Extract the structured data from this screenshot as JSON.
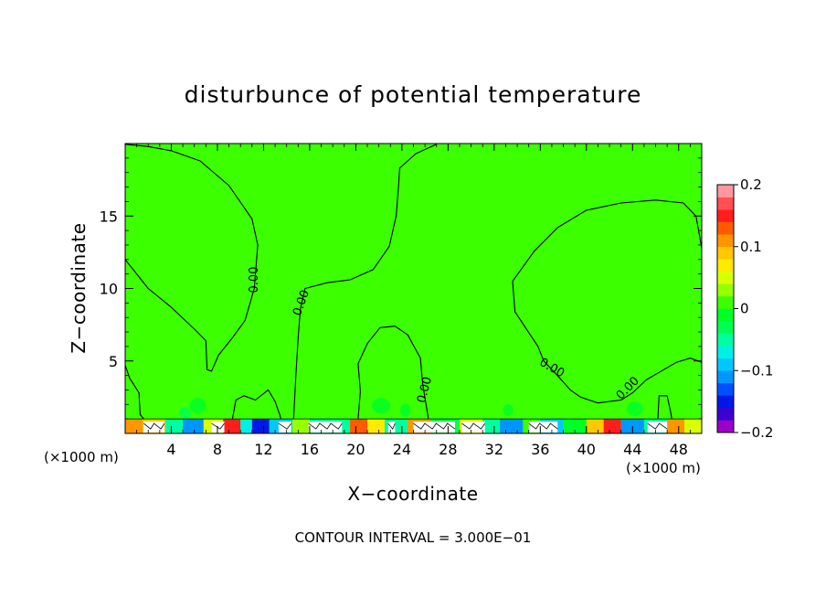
{
  "chart_data": {
    "type": "heatmap",
    "title": "disturbunce of potential temperature",
    "xlabel": "X−coordinate",
    "ylabel": "Z−coordinate",
    "x_unit_left": "(×1000 m)",
    "x_unit_right": "(×1000 m)",
    "footer": "CONTOUR INTERVAL = 3.000E−01",
    "xlim": [
      0,
      50
    ],
    "ylim": [
      0,
      20
    ],
    "x_ticks": [
      4,
      8,
      12,
      16,
      20,
      24,
      28,
      32,
      36,
      40,
      44,
      48
    ],
    "x_tick_labels": [
      "4",
      "8",
      "12",
      "16",
      "20",
      "24",
      "28",
      "32",
      "36",
      "40",
      "44",
      "48"
    ],
    "y_ticks": [
      5,
      10,
      15
    ],
    "y_tick_labels": [
      "5",
      "10",
      "15"
    ],
    "background_value": 0,
    "contour_labels": [
      {
        "text": "0.00",
        "x": 11.2,
        "y": 10.6,
        "angle": -90
      },
      {
        "text": "0.00",
        "x": 15.3,
        "y": 9.0,
        "angle": -70
      },
      {
        "text": "0.00",
        "x": 26.0,
        "y": 3.0,
        "angle": -75
      },
      {
        "text": "0.00",
        "x": 37.0,
        "y": 4.5,
        "angle": 30
      },
      {
        "text": "0.00",
        "x": 43.6,
        "y": 3.1,
        "angle": -45
      }
    ],
    "contours": [
      {
        "level": 0.0,
        "points": [
          [
            0,
            12
          ],
          [
            2,
            10
          ],
          [
            4,
            8.7
          ],
          [
            6,
            7.2
          ],
          [
            7,
            6.4
          ],
          [
            7.1,
            4.4
          ],
          [
            7.5,
            4.3
          ],
          [
            8.1,
            5.4
          ],
          [
            9.3,
            6.6
          ],
          [
            10.4,
            7.8
          ],
          [
            11.2,
            10
          ],
          [
            11.5,
            13
          ],
          [
            11,
            14.8
          ],
          [
            9,
            17.1
          ],
          [
            6.5,
            18.8
          ],
          [
            4,
            19.5
          ],
          [
            2,
            19.8
          ],
          [
            0,
            19.95
          ]
        ]
      },
      {
        "level": 0.0,
        "points": [
          [
            14.6,
            1.0
          ],
          [
            14.8,
            4
          ],
          [
            15.0,
            6.6
          ],
          [
            15.2,
            8.6
          ],
          [
            15.6,
            10
          ],
          [
            17.5,
            10.4
          ],
          [
            19.5,
            10.6
          ],
          [
            21.5,
            11.3
          ],
          [
            22.9,
            12.9
          ],
          [
            23.5,
            15
          ],
          [
            23.7,
            17
          ],
          [
            23.8,
            18.3
          ],
          [
            25.2,
            19.3
          ],
          [
            27,
            19.95
          ]
        ]
      },
      {
        "level": 0.0,
        "points": [
          [
            20.2,
            1.0
          ],
          [
            20.4,
            2.9
          ],
          [
            20.2,
            4.8
          ],
          [
            21,
            6.2
          ],
          [
            22.1,
            7.3
          ],
          [
            23.4,
            7.4
          ],
          [
            24.5,
            6.8
          ],
          [
            25.6,
            5.2
          ],
          [
            25.8,
            3.4
          ],
          [
            26.2,
            1.5
          ],
          [
            26.3,
            1.0
          ]
        ]
      },
      {
        "level": 0.0,
        "points": [
          [
            50,
            12.8
          ],
          [
            49.5,
            15
          ],
          [
            48.4,
            15.9
          ],
          [
            46,
            16.1
          ],
          [
            43,
            15.9
          ],
          [
            40,
            15.4
          ],
          [
            37.5,
            14.2
          ],
          [
            35.5,
            12.6
          ],
          [
            33.6,
            10.5
          ],
          [
            33.8,
            8.4
          ],
          [
            34.8,
            7.2
          ],
          [
            35.8,
            6
          ],
          [
            36.3,
            5
          ],
          [
            37.6,
            3.9
          ],
          [
            38.6,
            3
          ],
          [
            39.5,
            2.5
          ],
          [
            41,
            2.1
          ],
          [
            42,
            2.2
          ],
          [
            43,
            2.3
          ],
          [
            44,
            2.8
          ],
          [
            45.2,
            3.7
          ],
          [
            46.5,
            4.3
          ],
          [
            47.8,
            4.9
          ],
          [
            49,
            5.2
          ],
          [
            50,
            4.9
          ]
        ]
      },
      {
        "level": 0.0,
        "points": [
          [
            0,
            4.7
          ],
          [
            0.4,
            3.8
          ],
          [
            1.2,
            2.8
          ],
          [
            1.3,
            1.3
          ],
          [
            1.6,
            1.0
          ]
        ]
      },
      {
        "level": 0.0,
        "points": [
          [
            9.3,
            1.0
          ],
          [
            9.6,
            2.3
          ],
          [
            10.3,
            2.6
          ],
          [
            11.3,
            2.3
          ],
          [
            12.4,
            3
          ],
          [
            13.0,
            2.2
          ],
          [
            13.4,
            1.3
          ],
          [
            13.5,
            1.0
          ]
        ]
      },
      {
        "level": 0.0,
        "points": [
          [
            46.2,
            1.0
          ],
          [
            46.3,
            2.6
          ],
          [
            47,
            2.6
          ],
          [
            47.3,
            1.5
          ],
          [
            47.4,
            1.0
          ]
        ]
      }
    ],
    "blobs": [
      {
        "x": 16.6,
        "y": 5.2,
        "rx": 0.55,
        "ry": 1.3,
        "value": 0.02
      },
      {
        "x": 27.5,
        "y": 1.9,
        "rx": 0.25,
        "ry": 0.45,
        "value": 0.02
      },
      {
        "x": 6.3,
        "y": 1.9,
        "rx": 0.7,
        "ry": 0.55,
        "value": -0.02
      },
      {
        "x": 5.2,
        "y": 1.4,
        "rx": 0.5,
        "ry": 0.4,
        "value": -0.03
      },
      {
        "x": 22.2,
        "y": 1.9,
        "rx": 0.8,
        "ry": 0.55,
        "value": -0.02
      },
      {
        "x": 24.3,
        "y": 1.6,
        "rx": 0.45,
        "ry": 0.45,
        "value": -0.02
      },
      {
        "x": 44.2,
        "y": 1.7,
        "rx": 0.7,
        "ry": 0.5,
        "value": -0.02
      },
      {
        "x": 33.2,
        "y": 1.6,
        "rx": 0.45,
        "ry": 0.4,
        "value": -0.02
      }
    ],
    "surface_band": {
      "y_top": 1.0,
      "cells": [
        {
          "x0": 0.0,
          "x1": 1.5,
          "value": 0.12
        },
        {
          "x0": 1.5,
          "x1": 3.5,
          "value": 0.08
        },
        {
          "x0": 3.5,
          "x1": 5.0,
          "value": -0.05
        },
        {
          "x0": 5.0,
          "x1": 6.8,
          "value": -0.12
        },
        {
          "x0": 6.8,
          "x1": 8.5,
          "value": 0.05
        },
        {
          "x0": 8.5,
          "x1": 10.0,
          "value": 0.15
        },
        {
          "x0": 10.0,
          "x1": 11.0,
          "value": -0.08
        },
        {
          "x0": 11.0,
          "x1": 12.5,
          "value": -0.15
        },
        {
          "x0": 12.5,
          "x1": 14.5,
          "value": -0.1
        },
        {
          "x0": 14.5,
          "x1": 16.0,
          "value": 0.03
        },
        {
          "x0": 16.0,
          "x1": 19.5,
          "value": -0.04
        },
        {
          "x0": 19.5,
          "x1": 21.0,
          "value": 0.13
        },
        {
          "x0": 21.0,
          "x1": 22.5,
          "value": 0.06
        },
        {
          "x0": 22.5,
          "x1": 24.5,
          "value": -0.06
        },
        {
          "x0": 24.5,
          "x1": 26.5,
          "value": 0.1
        },
        {
          "x0": 26.5,
          "x1": 29.0,
          "value": -0.03
        },
        {
          "x0": 29.0,
          "x1": 31.0,
          "value": 0.04
        },
        {
          "x0": 31.0,
          "x1": 32.5,
          "value": -0.05
        },
        {
          "x0": 32.5,
          "x1": 34.5,
          "value": -0.12
        },
        {
          "x0": 34.5,
          "x1": 36.0,
          "value": 0.02
        },
        {
          "x0": 36.0,
          "x1": 38.0,
          "value": -0.09
        },
        {
          "x0": 38.0,
          "x1": 40.0,
          "value": -0.02
        },
        {
          "x0": 40.0,
          "x1": 41.5,
          "value": 0.09
        },
        {
          "x0": 41.5,
          "x1": 43.0,
          "value": 0.14
        },
        {
          "x0": 43.0,
          "x1": 45.0,
          "value": -0.11
        },
        {
          "x0": 45.0,
          "x1": 47.0,
          "value": -0.06
        },
        {
          "x0": 47.0,
          "x1": 48.5,
          "value": 0.11
        },
        {
          "x0": 48.5,
          "x1": 50.0,
          "value": 0.05
        }
      ],
      "white_patches": [
        [
          1.6,
          3.4
        ],
        [
          7.5,
          8.6
        ],
        [
          13.3,
          14.4
        ],
        [
          15.9,
          18.8
        ],
        [
          22.8,
          23.4
        ],
        [
          25.0,
          28.6
        ],
        [
          29.2,
          31.2
        ],
        [
          35.0,
          37.5
        ],
        [
          45.3,
          47.0
        ]
      ]
    },
    "colorbar": {
      "min": -0.2,
      "max": 0.2,
      "tick_values": [
        0.2,
        0.1,
        0,
        -0.1,
        -0.2
      ],
      "tick_labels": [
        "0.2",
        "0.1",
        "0",
        "−0.1",
        "−0.2"
      ],
      "colors_low_to_high": [
        "#9b00c8",
        "#3c00d2",
        "#0018e6",
        "#0050ff",
        "#0096ff",
        "#00c8ff",
        "#00f0e6",
        "#00ffa0",
        "#00ff50",
        "#00ff28",
        "#3cff00",
        "#96ff00",
        "#dcff00",
        "#ffeb00",
        "#ffc800",
        "#ff9600",
        "#ff5a00",
        "#ff1e1e",
        "#ff5050",
        "#ff96a0"
      ]
    }
  }
}
